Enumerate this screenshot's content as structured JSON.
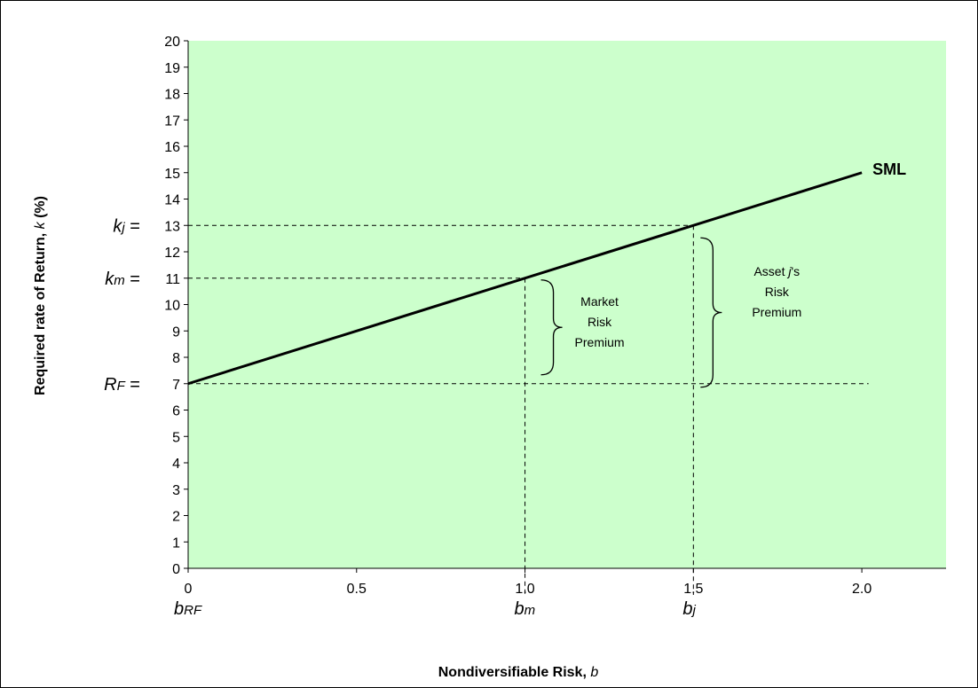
{
  "chart_data": {
    "type": "line",
    "xlabel": "Nondiversifiable Risk,",
    "xlabel_symbol": "b",
    "ylabel": "Required rate of Return,",
    "ylabel_symbol": "k",
    "ylabel_unit": "(%)",
    "xlim": [
      0,
      2.25
    ],
    "ylim": [
      0,
      20
    ],
    "x_ticks": [
      {
        "value": 0,
        "label": "0"
      },
      {
        "value": 0.5,
        "label": "0.5"
      },
      {
        "value": 1.0,
        "label": "1.0"
      },
      {
        "value": 1.5,
        "label": "1.5"
      },
      {
        "value": 2.0,
        "label": "2.0"
      }
    ],
    "y_ticks": [
      0,
      1,
      2,
      3,
      4,
      5,
      6,
      7,
      8,
      9,
      10,
      11,
      12,
      13,
      14,
      15,
      16,
      17,
      18,
      19,
      20
    ],
    "series": [
      {
        "name": "SML",
        "x": [
          0,
          2.0
        ],
        "y": [
          7,
          15
        ]
      }
    ],
    "reference_levels": [
      {
        "y": 7,
        "label_main": "R",
        "label_sub": "F",
        "suffix": "="
      },
      {
        "y": 11,
        "label_main": "k",
        "label_sub": "m",
        "suffix": "="
      },
      {
        "y": 13,
        "label_main": "k",
        "label_sub": "j",
        "suffix": "="
      }
    ],
    "reference_betas": [
      {
        "x": 0,
        "label_main": "b",
        "label_sub": "RF"
      },
      {
        "x": 1.0,
        "label_main": "b",
        "label_sub": "m"
      },
      {
        "x": 1.5,
        "label_main": "b",
        "label_sub": "j"
      }
    ],
    "annotations": [
      {
        "lines": [
          "Market",
          "Risk",
          "Premium"
        ],
        "x_beta": 1.0,
        "y_from": 7,
        "y_to": 11
      },
      {
        "lines_rich": [
          [
            "Asset ",
            "j",
            "'s"
          ],
          [
            "Risk"
          ],
          [
            "Premium"
          ]
        ],
        "x_beta": 1.5,
        "y_from": 7,
        "y_to": 13
      }
    ],
    "colors": {
      "plot_background": "#ccffcc",
      "line": "#000000"
    },
    "grid": false,
    "legend": "none"
  }
}
